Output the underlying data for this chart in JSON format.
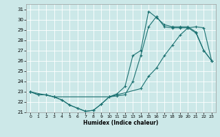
{
  "title": "",
  "xlabel": "Humidex (Indice chaleur)",
  "background_color": "#cce8e8",
  "line_color": "#1a7070",
  "xlim": [
    -0.5,
    23.5
  ],
  "ylim": [
    21,
    31.5
  ],
  "xticks": [
    0,
    1,
    2,
    3,
    4,
    5,
    6,
    7,
    8,
    9,
    10,
    11,
    12,
    13,
    14,
    15,
    16,
    17,
    18,
    19,
    20,
    21,
    22,
    23
  ],
  "yticks": [
    21,
    22,
    23,
    24,
    25,
    26,
    27,
    28,
    29,
    30,
    31
  ],
  "line1_x": [
    0,
    1,
    2,
    3,
    4,
    5,
    6,
    7,
    8,
    9,
    10,
    11,
    12,
    13,
    14,
    15,
    16,
    17,
    18,
    19,
    20,
    21,
    22,
    23
  ],
  "line1_y": [
    23.0,
    22.7,
    22.7,
    22.5,
    22.2,
    21.7,
    21.4,
    21.1,
    21.2,
    21.8,
    22.5,
    22.6,
    22.7,
    24.0,
    26.5,
    29.3,
    30.3,
    29.3,
    29.2,
    29.2,
    29.2,
    28.7,
    27.0,
    26.0
  ],
  "line2_x": [
    0,
    1,
    2,
    3,
    4,
    5,
    6,
    7,
    8,
    9,
    10,
    11,
    12,
    13,
    14,
    15,
    16,
    17,
    18,
    19,
    20,
    21,
    22,
    23
  ],
  "line2_y": [
    23.0,
    22.7,
    22.7,
    22.5,
    22.2,
    21.7,
    21.4,
    21.1,
    21.2,
    21.8,
    22.5,
    22.8,
    23.5,
    26.5,
    27.0,
    30.8,
    30.2,
    29.5,
    29.3,
    29.3,
    29.3,
    28.8,
    27.0,
    26.0
  ],
  "line3_x": [
    0,
    3,
    10,
    14,
    15,
    16,
    17,
    18,
    19,
    20,
    21,
    22,
    23
  ],
  "line3_y": [
    23.0,
    22.5,
    22.5,
    23.3,
    24.5,
    25.3,
    26.5,
    27.5,
    28.5,
    29.2,
    29.3,
    29.2,
    26.0
  ]
}
